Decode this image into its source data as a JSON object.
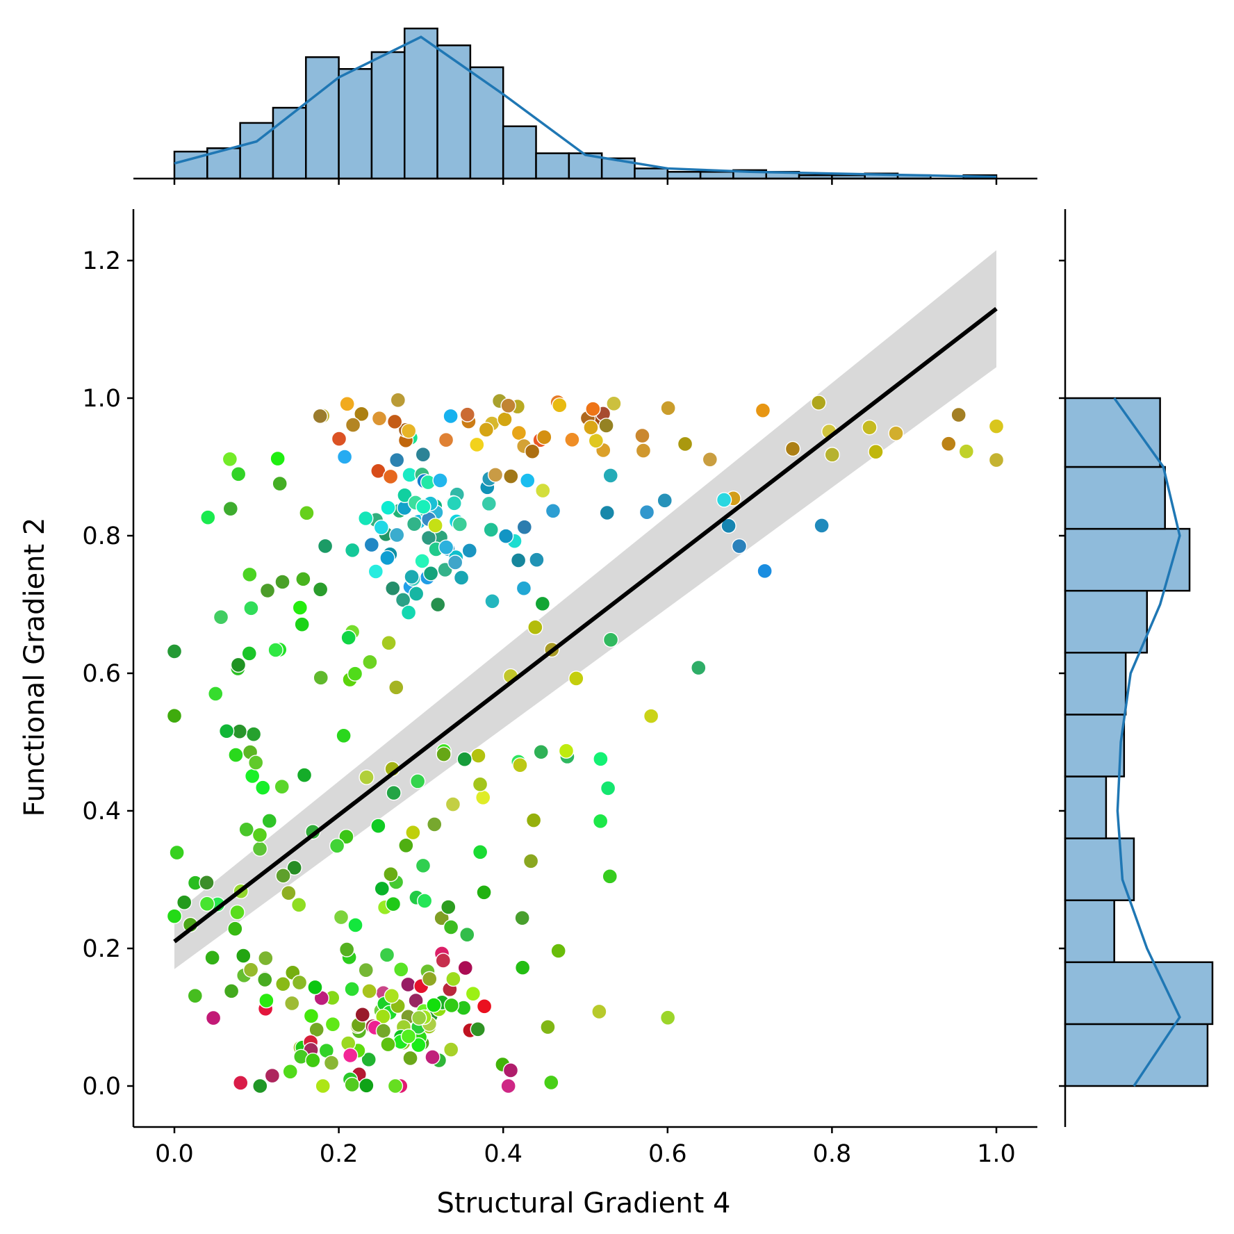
{
  "chart_data": {
    "type": "scatter",
    "xlabel": "Structural Gradient 4",
    "ylabel": "Functional Gradient 2",
    "xlim": [
      -0.05,
      1.05
    ],
    "ylim": [
      -0.06,
      1.27
    ],
    "xticks": [
      "0.0",
      "0.2",
      "0.4",
      "0.6",
      "0.8",
      "1.0"
    ],
    "yticks": [
      "0.0",
      "0.2",
      "0.4",
      "0.6",
      "0.8",
      "1.0",
      "1.2"
    ],
    "regression": {
      "x": [
        0,
        1
      ],
      "y": [
        0.21,
        1.13
      ],
      "ci_lower": [
        0.17,
        1.045
      ],
      "ci_upper": [
        0.25,
        1.215
      ],
      "line_color": "#000000",
      "ci_color": "#d9d9d9"
    },
    "top_histogram": {
      "bin_edges": [
        0,
        0.04,
        0.08,
        0.12,
        0.16,
        0.2,
        0.24,
        0.28,
        0.32,
        0.36,
        0.4,
        0.44,
        0.48,
        0.52,
        0.56,
        0.6,
        0.64,
        0.68,
        0.72,
        0.76,
        0.8,
        0.84,
        0.88,
        0.92,
        0.96,
        1.0
      ],
      "counts": [
        16,
        18,
        33,
        42,
        72,
        65,
        75,
        89,
        79,
        66,
        31,
        15,
        15,
        12,
        6,
        4,
        4,
        5,
        4,
        2,
        2,
        3,
        2,
        0,
        2
      ],
      "kde": [
        [
          0,
          9
        ],
        [
          0.1,
          22
        ],
        [
          0.2,
          60
        ],
        [
          0.3,
          84
        ],
        [
          0.4,
          50
        ],
        [
          0.5,
          14
        ],
        [
          0.6,
          6
        ],
        [
          0.7,
          4
        ],
        [
          0.8,
          3
        ],
        [
          0.9,
          2
        ],
        [
          1.0,
          1
        ]
      ]
    },
    "right_histogram": {
      "bin_edges": [
        0,
        0.09,
        0.18,
        0.27,
        0.36,
        0.45,
        0.54,
        0.63,
        0.72,
        0.81,
        0.9,
        1.0
      ],
      "counts": [
        87,
        90,
        30,
        42,
        25,
        36,
        37,
        50,
        76,
        61,
        58
      ],
      "kde": [
        [
          0,
          42
        ],
        [
          0.1,
          70
        ],
        [
          0.2,
          50
        ],
        [
          0.3,
          35
        ],
        [
          0.4,
          32
        ],
        [
          0.5,
          34
        ],
        [
          0.6,
          40
        ],
        [
          0.7,
          58
        ],
        [
          0.8,
          70
        ],
        [
          0.9,
          60
        ],
        [
          1.0,
          30
        ]
      ]
    },
    "histogram_color": "#8fbbdb",
    "kde_color": "#1f77b4"
  }
}
